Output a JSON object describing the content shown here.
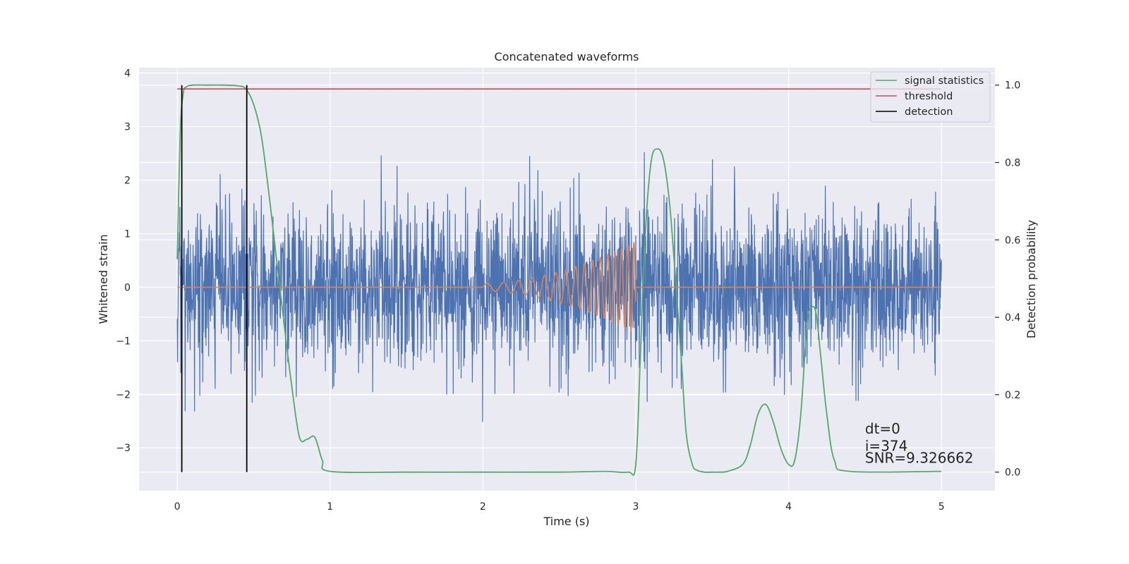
{
  "chart_data": {
    "type": "line",
    "title": "Concatenated waveforms",
    "xlabel": "Time (s)",
    "ylabel": "Whitened strain",
    "ylabel_right": "Detection probability",
    "xlim": [
      -0.25,
      5.35
    ],
    "ylim": [
      -3.8,
      4.1
    ],
    "ylim_right": [
      -0.048,
      1.045
    ],
    "x_ticks": [
      0,
      1,
      2,
      3,
      4,
      5
    ],
    "x_tick_labels": [
      "0",
      "1",
      "2",
      "3",
      "4",
      "5"
    ],
    "y_ticks": [
      -3,
      -2,
      -1,
      0,
      1,
      2,
      3,
      4
    ],
    "y_tick_labels": [
      "−3",
      "−2",
      "−1",
      "0",
      "1",
      "2",
      "3",
      "4"
    ],
    "y_right_ticks": [
      0,
      0.2,
      0.4,
      0.6,
      0.8,
      1.0
    ],
    "y_right_tick_labels": [
      "0.0",
      "0.2",
      "0.4",
      "0.6",
      "0.8",
      "1.0"
    ],
    "grid": true,
    "legend_position": "top-right",
    "legend": [
      "signal statistics",
      "threshold",
      "detection"
    ],
    "colors": {
      "background": "#eaeaf2",
      "grid": "#ffffff",
      "strain": "#4c72b0",
      "injection": "#dd8452",
      "statistic": "#55a868",
      "threshold": "#c44e52",
      "detection": "#000000"
    },
    "series": [
      {
        "name": "",
        "role": "whitened-strain",
        "axis": "left",
        "x_range": [
          0,
          5
        ],
        "noise_sigma": 0.75,
        "y_extent": [
          -3.4,
          3.7
        ]
      },
      {
        "name": "",
        "role": "injected-chirp",
        "axis": "left",
        "x_range": [
          0,
          5
        ],
        "chirp_x_range": [
          2.0,
          3.0
        ],
        "chirp_start_amplitude": 0.07,
        "chirp_end_amplitude": 0.85,
        "chirp_start_cycles_per_s": 9,
        "chirp_end_cycles_per_s": 26
      },
      {
        "name": "signal statistics",
        "axis": "right",
        "x": [
          0,
          0.02,
          0.04,
          0.06,
          0.1,
          0.2,
          0.3,
          0.4,
          0.45,
          0.5,
          0.55,
          0.6,
          0.65,
          0.7,
          0.75,
          0.8,
          0.85,
          0.9,
          0.95,
          1.0,
          1.5,
          2.0,
          2.5,
          2.8,
          2.95,
          3.0,
          3.03,
          3.06,
          3.1,
          3.14,
          3.18,
          3.22,
          3.26,
          3.3,
          3.33,
          3.37,
          3.4,
          3.45,
          3.5,
          3.55,
          3.6,
          3.7,
          3.75,
          3.8,
          3.85,
          3.9,
          3.95,
          4.0,
          4.04,
          4.08,
          4.12,
          4.15,
          4.18,
          4.21,
          4.25,
          4.3,
          4.4,
          5.0
        ],
        "y": [
          0.55,
          0.88,
          0.98,
          0.995,
          1.0,
          1.0,
          1.0,
          0.998,
          0.99,
          0.95,
          0.87,
          0.72,
          0.55,
          0.38,
          0.22,
          0.09,
          0.085,
          0.09,
          0.03,
          0.002,
          0.0,
          0.0,
          0.0,
          0.002,
          0.0,
          0.02,
          0.3,
          0.6,
          0.8,
          0.835,
          0.81,
          0.7,
          0.5,
          0.28,
          0.1,
          0.02,
          0.005,
          0.0,
          0.0,
          0.0,
          0.002,
          0.02,
          0.07,
          0.15,
          0.175,
          0.13,
          0.06,
          0.02,
          0.03,
          0.15,
          0.38,
          0.425,
          0.41,
          0.3,
          0.15,
          0.03,
          0.002,
          0.002
        ]
      },
      {
        "name": "threshold",
        "axis": "right",
        "x": [
          0,
          5
        ],
        "y": [
          0.99,
          0.99
        ]
      }
    ],
    "detections": {
      "name": "detection",
      "x": [
        0.03,
        0.455
      ],
      "y_range": [
        0,
        1
      ]
    },
    "annotations": [
      {
        "text": "dt=0",
        "x": 4.5,
        "y_right": 0.1
      },
      {
        "text": "i=374",
        "x": 4.5,
        "y_right": 0.055
      },
      {
        "text": "SNR=9.326662",
        "x": 4.5,
        "y_right": 0.024
      }
    ]
  }
}
